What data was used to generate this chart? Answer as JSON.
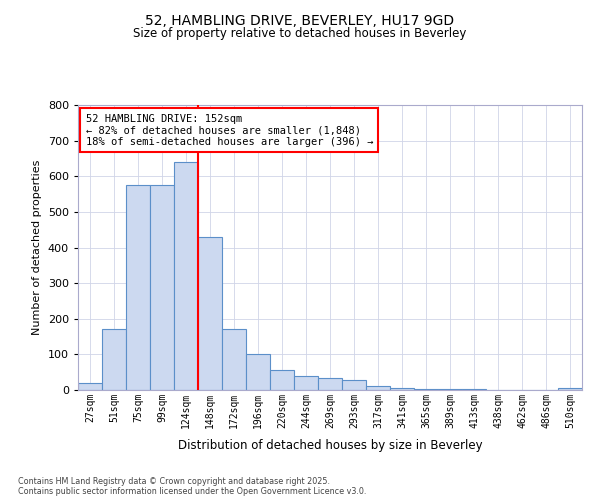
{
  "title_line1": "52, HAMBLING DRIVE, BEVERLEY, HU17 9GD",
  "title_line2": "Size of property relative to detached houses in Beverley",
  "xlabel": "Distribution of detached houses by size in Beverley",
  "ylabel": "Number of detached properties",
  "categories": [
    "27sqm",
    "51sqm",
    "75sqm",
    "99sqm",
    "124sqm",
    "148sqm",
    "172sqm",
    "196sqm",
    "220sqm",
    "244sqm",
    "269sqm",
    "293sqm",
    "317sqm",
    "341sqm",
    "365sqm",
    "389sqm",
    "413sqm",
    "438sqm",
    "462sqm",
    "486sqm",
    "510sqm"
  ],
  "values": [
    20,
    170,
    575,
    575,
    640,
    430,
    170,
    100,
    55,
    40,
    35,
    28,
    12,
    5,
    3,
    2,
    2,
    1,
    0,
    0,
    5
  ],
  "bar_color": "#ccd9f0",
  "bar_edge_color": "#5b8fc9",
  "redline_index": 5,
  "annotation_title": "52 HAMBLING DRIVE: 152sqm",
  "annotation_line2": "← 82% of detached houses are smaller (1,848)",
  "annotation_line3": "18% of semi-detached houses are larger (396) →",
  "ylim": [
    0,
    800
  ],
  "yticks": [
    0,
    100,
    200,
    300,
    400,
    500,
    600,
    700,
    800
  ],
  "background_color": "#ffffff",
  "plot_bg_color": "#ffffff",
  "grid_color": "#d0d4e8",
  "footer_line1": "Contains HM Land Registry data © Crown copyright and database right 2025.",
  "footer_line2": "Contains public sector information licensed under the Open Government Licence v3.0."
}
